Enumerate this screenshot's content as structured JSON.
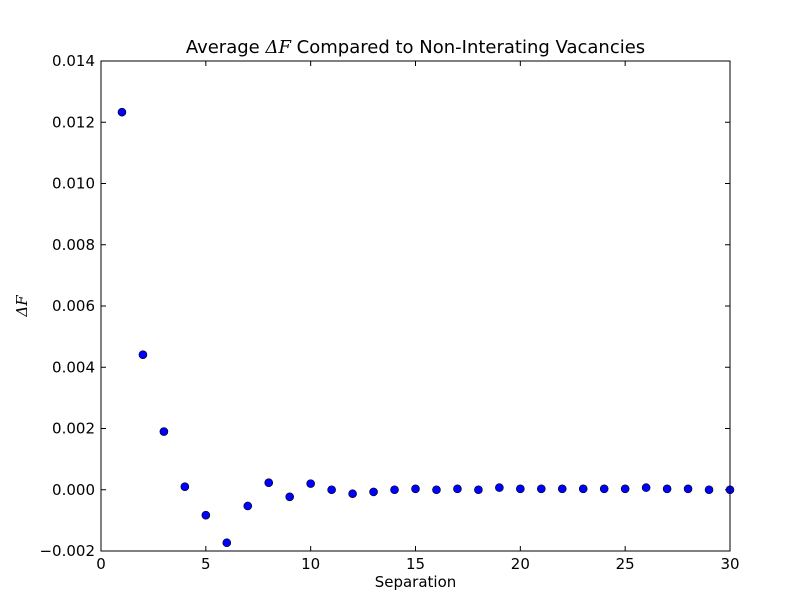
{
  "chart_data": {
    "type": "scatter",
    "title_prefix": "Average ",
    "title_math": "ΔF",
    "title_suffix": " Compared to Non-Interating Vacancies",
    "xlabel": "Separation",
    "ylabel": "ΔF",
    "xlim": [
      0,
      30
    ],
    "ylim": [
      -0.002,
      0.014
    ],
    "x_ticks": [
      0,
      5,
      10,
      15,
      20,
      25,
      30
    ],
    "x_tick_labels": [
      "0",
      "5",
      "10",
      "15",
      "20",
      "25",
      "30"
    ],
    "y_ticks": [
      -0.002,
      0.0,
      0.002,
      0.004,
      0.006,
      0.008,
      0.01,
      0.012,
      0.014
    ],
    "y_tick_labels": [
      "−0.002",
      "0.000",
      "0.002",
      "0.004",
      "0.006",
      "0.008",
      "0.010",
      "0.012",
      "0.014"
    ],
    "grid": false,
    "marker_color": "#0000ff",
    "series": [
      {
        "x": [
          1,
          2,
          3,
          4,
          5,
          6,
          7,
          8,
          9,
          10,
          11,
          12,
          13,
          14,
          15,
          16,
          17,
          18,
          19,
          20,
          21,
          22,
          23,
          24,
          25,
          26,
          27,
          28,
          29,
          30
        ],
        "y": [
          0.01233,
          0.00441,
          0.0019,
          0.0001,
          -0.00083,
          -0.00173,
          -0.00053,
          0.00023,
          -0.00023,
          0.0002,
          0.0,
          -0.00013,
          -7e-05,
          0.0,
          3e-05,
          0.0,
          3e-05,
          0.0,
          7e-05,
          3e-05,
          3e-05,
          3e-05,
          3e-05,
          3e-05,
          3e-05,
          7e-05,
          3e-05,
          3e-05,
          0.0,
          0.0
        ]
      }
    ]
  }
}
